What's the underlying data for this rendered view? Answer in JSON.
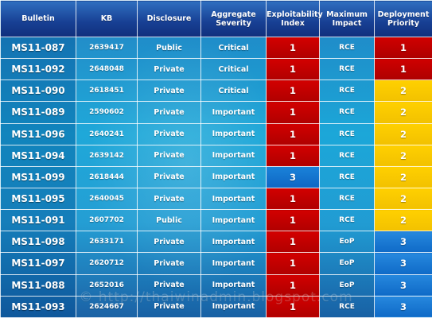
{
  "headers": {
    "bulletin": "Bulletin",
    "kb": "KB",
    "disclosure": "Disclosure",
    "aggregate_severity_line1": "Aggregate",
    "aggregate_severity_line2": "Severity",
    "exploitability_index_line1": "Exploitability",
    "exploitability_index_line2": "Index",
    "maximum_impact_line1": "Maximum",
    "maximum_impact_line2": "Impact",
    "deployment_priority_line1": "Deployment",
    "deployment_priority_line2": "Priority"
  },
  "rows": [
    {
      "bulletin": "MS11-087",
      "kb": "2639417",
      "disclosure": "Public",
      "severity": "Critical",
      "exploitability": "1",
      "impact": "RCE",
      "priority": "1"
    },
    {
      "bulletin": "MS11-092",
      "kb": "2648048",
      "disclosure": "Private",
      "severity": "Critical",
      "exploitability": "1",
      "impact": "RCE",
      "priority": "1"
    },
    {
      "bulletin": "MS11-090",
      "kb": "2618451",
      "disclosure": "Private",
      "severity": "Critical",
      "exploitability": "1",
      "impact": "RCE",
      "priority": "2"
    },
    {
      "bulletin": "MS11-089",
      "kb": "2590602",
      "disclosure": "Private",
      "severity": "Important",
      "exploitability": "1",
      "impact": "RCE",
      "priority": "2"
    },
    {
      "bulletin": "MS11-096",
      "kb": "2640241",
      "disclosure": "Private",
      "severity": "Important",
      "exploitability": "1",
      "impact": "RCE",
      "priority": "2"
    },
    {
      "bulletin": "MS11-094",
      "kb": "2639142",
      "disclosure": "Private",
      "severity": "Important",
      "exploitability": "1",
      "impact": "RCE",
      "priority": "2"
    },
    {
      "bulletin": "MS11-099",
      "kb": "2618444",
      "disclosure": "Private",
      "severity": "Important",
      "exploitability": "3",
      "impact": "RCE",
      "priority": "2"
    },
    {
      "bulletin": "MS11-095",
      "kb": "2640045",
      "disclosure": "Private",
      "severity": "Important",
      "exploitability": "1",
      "impact": "RCE",
      "priority": "2"
    },
    {
      "bulletin": "MS11-091",
      "kb": "2607702",
      "disclosure": "Public",
      "severity": "Important",
      "exploitability": "1",
      "impact": "RCE",
      "priority": "2"
    },
    {
      "bulletin": "MS11-098",
      "kb": "2633171",
      "disclosure": "Private",
      "severity": "Important",
      "exploitability": "1",
      "impact": "EoP",
      "priority": "3"
    },
    {
      "bulletin": "MS11-097",
      "kb": "2620712",
      "disclosure": "Private",
      "severity": "Important",
      "exploitability": "1",
      "impact": "EoP",
      "priority": "3"
    },
    {
      "bulletin": "MS11-088",
      "kb": "2652016",
      "disclosure": "Private",
      "severity": "Important",
      "exploitability": "1",
      "impact": "EoP",
      "priority": "3"
    },
    {
      "bulletin": "MS11-093",
      "kb": "2624667",
      "disclosure": "Private",
      "severity": "Important",
      "exploitability": "1",
      "impact": "RCE",
      "priority": "3"
    }
  ],
  "watermark": "© http://thaiwinadmin.blogspot.com"
}
